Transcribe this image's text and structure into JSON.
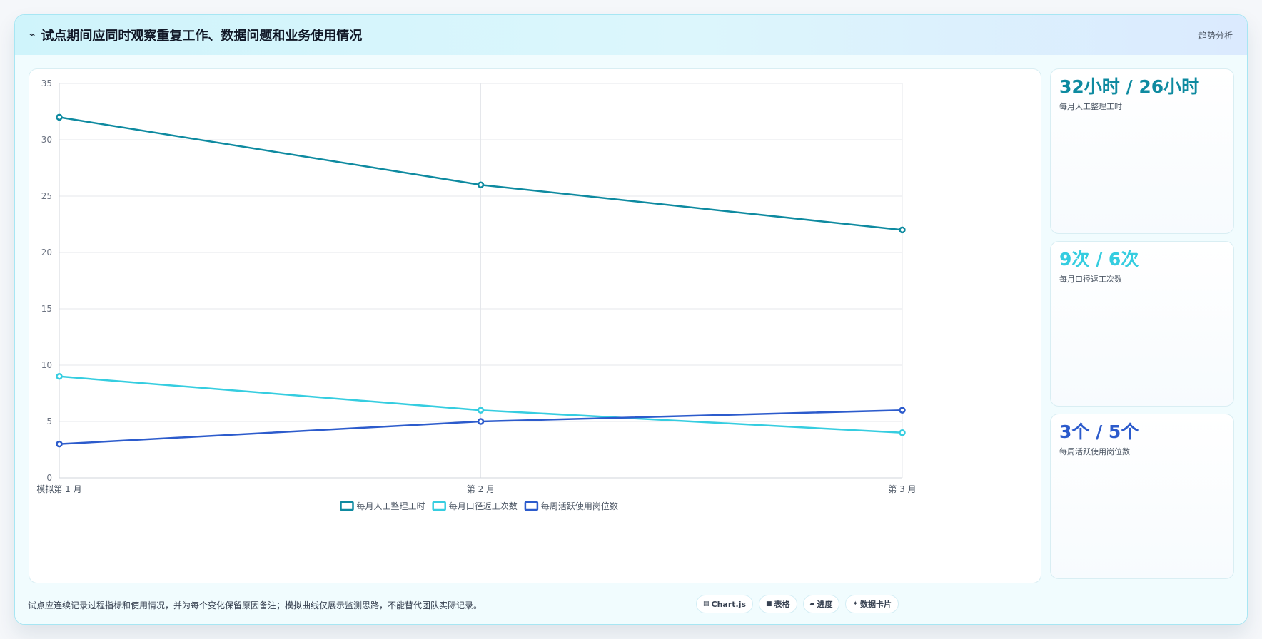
{
  "header": {
    "icon": "pulse-icon",
    "title": "试点期间应同时观察重复工作、数据问题和业务使用情况",
    "badge": "趋势分析"
  },
  "chart_data": {
    "type": "line",
    "x": [
      "模拟第 1 月",
      "第 2 月",
      "第 3 月"
    ],
    "ylim": [
      0,
      35
    ],
    "yticks": [
      0,
      5,
      10,
      15,
      20,
      25,
      30,
      35
    ],
    "grid": true,
    "legend_position": "bottom",
    "series": [
      {
        "name": "每月人工整理工时",
        "values": [
          32,
          26,
          22
        ],
        "color": "#0e8aa0"
      },
      {
        "name": "每月口径返工次数",
        "values": [
          9,
          6,
          4
        ],
        "color": "#35cde0"
      },
      {
        "name": "每周活跃使用岗位数",
        "values": [
          3,
          5,
          6
        ],
        "color": "#2c5bcc"
      }
    ]
  },
  "side_cards": [
    {
      "value": "32小时 / 26小时",
      "label": "每月人工整理工时",
      "color": "#0e8aa0"
    },
    {
      "value": "9次 / 6次",
      "label": "每月口径返工次数",
      "color": "#35cde0"
    },
    {
      "value": "3个 / 5个",
      "label": "每周活跃使用岗位数",
      "color": "#2c5bcc"
    }
  ],
  "footer": {
    "note": "试点应连续记录过程指标和使用情况，并为每个变化保留原因备注；模拟曲线仅展示监测思路，不能替代团队实际记录。",
    "tags": [
      {
        "icon": "chart-icon",
        "glyph": "▤",
        "label": "Chart.js"
      },
      {
        "icon": "table-icon",
        "glyph": "■",
        "label": "表格"
      },
      {
        "icon": "progress-icon",
        "glyph": "▰",
        "label": "进度"
      },
      {
        "icon": "sparkle-icon",
        "glyph": "✦",
        "label": "数据卡片"
      }
    ]
  }
}
